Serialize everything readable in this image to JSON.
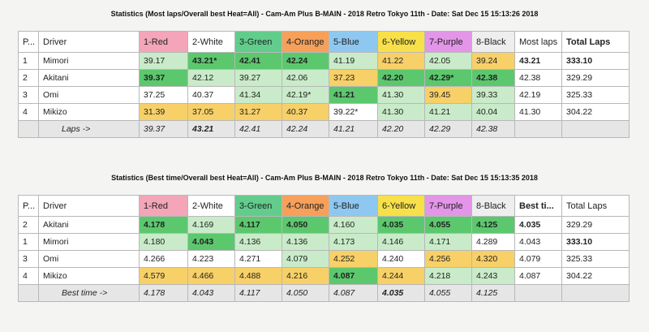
{
  "table1": {
    "title": "Statistics (Most laps/Overall best Heat=All) - Cam-Am Plus B-MAIN - 2018 Retro Tokyo 11th - Date: Sat Dec 15 15:13:26 2018",
    "headers": [
      "P...",
      "Driver",
      "1-Red",
      "2-White",
      "3-Green",
      "4-Orange",
      "5-Blue",
      "6-Yellow",
      "7-Purple",
      "8-Black",
      "Most laps",
      "Total Laps"
    ],
    "rows": [
      [
        "1",
        "Mimori",
        "39.17",
        "43.21*",
        "42.41",
        "42.24",
        "41.19",
        "41.22",
        "42.05",
        "39.24",
        "43.21",
        "333.10"
      ],
      [
        "2",
        "Akitani",
        "39.37",
        "42.12",
        "39.27",
        "42.06",
        "37.23",
        "42.20",
        "42.29*",
        "42.38",
        "42.38",
        "329.29"
      ],
      [
        "3",
        "Omi",
        "37.25",
        "40.37",
        "41.34",
        "42.19*",
        "41.21",
        "41.30",
        "39.45",
        "39.33",
        "42.19",
        "325.33"
      ],
      [
        "4",
        "Mikizo",
        "31.39",
        "37.05",
        "31.27",
        "40.37",
        "39.22*",
        "41.30",
        "41.21",
        "40.04",
        "41.30",
        "304.22"
      ]
    ],
    "footer": [
      "",
      "Laps ->",
      "39.37",
      "43.21",
      "42.41",
      "42.24",
      "41.21",
      "42.20",
      "42.29",
      "42.38",
      "",
      ""
    ]
  },
  "table2": {
    "title": "Statistics (Best time/Overall best Heat=All) - Cam-Am Plus B-MAIN - 2018 Retro Tokyo 11th - Date: Sat Dec 15 15:13:35 2018",
    "headers": [
      "P...",
      "Driver",
      "1-Red",
      "2-White",
      "3-Green",
      "4-Orange",
      "5-Blue",
      "6-Yellow",
      "7-Purple",
      "8-Black",
      "Best ti...",
      "Total Laps"
    ],
    "rows": [
      [
        "2",
        "Akitani",
        "4.178",
        "4.169",
        "4.117",
        "4.050",
        "4.160",
        "4.035",
        "4.055",
        "4.125",
        "4.035",
        "329.29"
      ],
      [
        "1",
        "Mimori",
        "4.180",
        "4.043",
        "4.136",
        "4.136",
        "4.173",
        "4.146",
        "4.171",
        "4.289",
        "4.043",
        "333.10"
      ],
      [
        "3",
        "Omi",
        "4.266",
        "4.223",
        "4.271",
        "4.079",
        "4.252",
        "4.240",
        "4.256",
        "4.320",
        "4.079",
        "325.33"
      ],
      [
        "4",
        "Mikizo",
        "4.579",
        "4.466",
        "4.488",
        "4.216",
        "4.087",
        "4.244",
        "4.218",
        "4.243",
        "4.087",
        "304.22"
      ]
    ],
    "footer": [
      "",
      "Best time ->",
      "4.178",
      "4.043",
      "4.117",
      "4.050",
      "4.087",
      "4.035",
      "4.055",
      "4.125",
      "",
      ""
    ]
  }
}
